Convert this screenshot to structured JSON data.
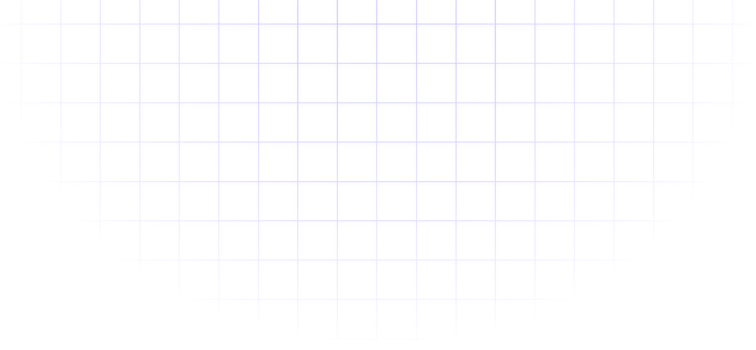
{
  "background": {
    "pattern": "grid",
    "line_color": "#c8c3ff",
    "background_color": "#ffffff",
    "fade": "radial"
  }
}
